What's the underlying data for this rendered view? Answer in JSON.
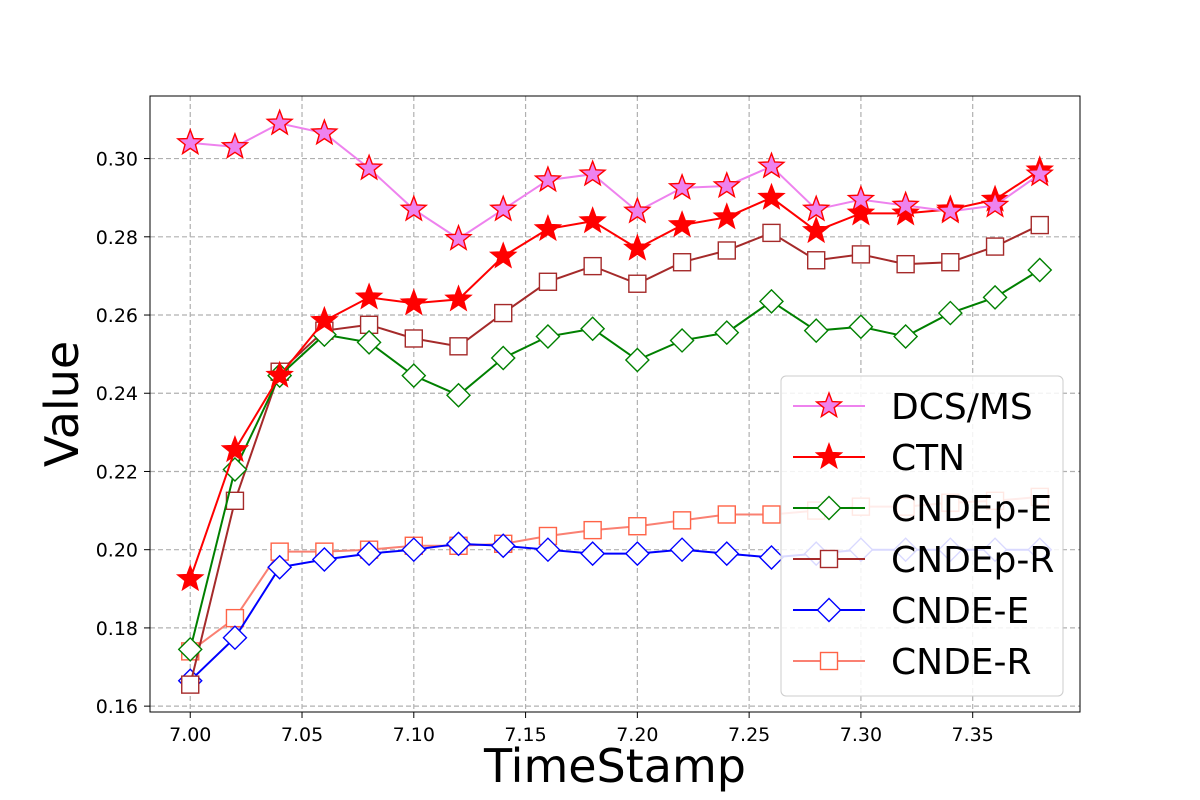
{
  "chart_data": {
    "type": "line",
    "title": "",
    "xlabel": "TimeStamp",
    "ylabel": "Value",
    "xlim": [
      6.982,
      7.398
    ],
    "ylim": [
      0.1585,
      0.316
    ],
    "xticks": [
      7.0,
      7.05,
      7.1,
      7.15,
      7.2,
      7.25,
      7.3,
      7.35
    ],
    "xtick_labels": [
      "7.00",
      "7.05",
      "7.10",
      "7.15",
      "7.20",
      "7.25",
      "7.30",
      "7.35"
    ],
    "yticks": [
      0.16,
      0.18,
      0.2,
      0.22,
      0.24,
      0.26,
      0.28,
      0.3
    ],
    "ytick_labels": [
      "0.16",
      "0.18",
      "0.20",
      "0.22",
      "0.24",
      "0.26",
      "0.28",
      "0.30"
    ],
    "grid": true,
    "legend_position": "lower-right",
    "x": [
      7.0,
      7.02,
      7.04,
      7.06,
      7.08,
      7.1,
      7.12,
      7.14,
      7.16,
      7.18,
      7.2,
      7.22,
      7.24,
      7.26,
      7.28,
      7.3,
      7.32,
      7.34,
      7.36,
      7.38
    ],
    "series": [
      {
        "name": "DCS/MS",
        "color": "#ee82ee",
        "marker": "star",
        "marker_fill": "#ee82ee",
        "marker_edge": "#ff0000",
        "values": [
          0.304,
          0.303,
          0.309,
          0.3065,
          0.2975,
          0.287,
          0.2795,
          0.287,
          0.2945,
          0.296,
          0.2865,
          0.2925,
          0.293,
          0.298,
          0.287,
          0.2895,
          0.288,
          0.2865,
          0.288,
          0.296
        ]
      },
      {
        "name": "CTN",
        "color": "#ff0000",
        "marker": "star",
        "marker_fill": "#ff0000",
        "marker_edge": "#ff0000",
        "values": [
          0.1925,
          0.2255,
          0.2445,
          0.2585,
          0.2645,
          0.263,
          0.264,
          0.275,
          0.282,
          0.284,
          0.277,
          0.283,
          0.285,
          0.29,
          0.2815,
          0.286,
          0.286,
          0.287,
          0.2895,
          0.297
        ]
      },
      {
        "name": "CNDEp-E",
        "color": "#008000",
        "marker": "diamond",
        "marker_fill": "#ffffff",
        "marker_edge": "#008000",
        "values": [
          0.1745,
          0.2205,
          0.2445,
          0.255,
          0.253,
          0.2445,
          0.2395,
          0.249,
          0.2545,
          0.2565,
          0.2485,
          0.2535,
          0.2555,
          0.2635,
          0.256,
          0.257,
          0.2545,
          0.2605,
          0.2645,
          0.2715
        ]
      },
      {
        "name": "CNDEp-R",
        "color": "#a52a2a",
        "marker": "square",
        "marker_fill": "#ffffff",
        "marker_edge": "#a52a2a",
        "values": [
          0.1655,
          0.2125,
          0.2455,
          0.256,
          0.2575,
          0.254,
          0.252,
          0.2605,
          0.2685,
          0.2725,
          0.268,
          0.2735,
          0.2765,
          0.281,
          0.274,
          0.2755,
          0.273,
          0.2735,
          0.2775,
          0.283
        ]
      },
      {
        "name": "CNDE-E",
        "color": "#0000ff",
        "marker": "diamond",
        "marker_fill": "#ffffff",
        "marker_edge": "#0000ff",
        "values": [
          0.1665,
          0.1775,
          0.1955,
          0.1975,
          0.199,
          0.2,
          0.2015,
          0.201,
          0.2,
          0.199,
          0.199,
          0.2,
          0.199,
          0.198,
          0.199,
          0.2,
          0.2,
          0.2,
          0.2,
          0.2
        ]
      },
      {
        "name": "CNDE-R",
        "color": "#fa8072",
        "marker": "square",
        "marker_fill": "#ffffff",
        "marker_edge": "#ff6347",
        "values": [
          0.174,
          0.1825,
          0.1995,
          0.1995,
          0.2,
          0.201,
          0.201,
          0.2015,
          0.2035,
          0.205,
          0.206,
          0.2075,
          0.209,
          0.209,
          0.21,
          0.211,
          0.211,
          0.212,
          0.2125,
          0.2135
        ]
      }
    ]
  }
}
